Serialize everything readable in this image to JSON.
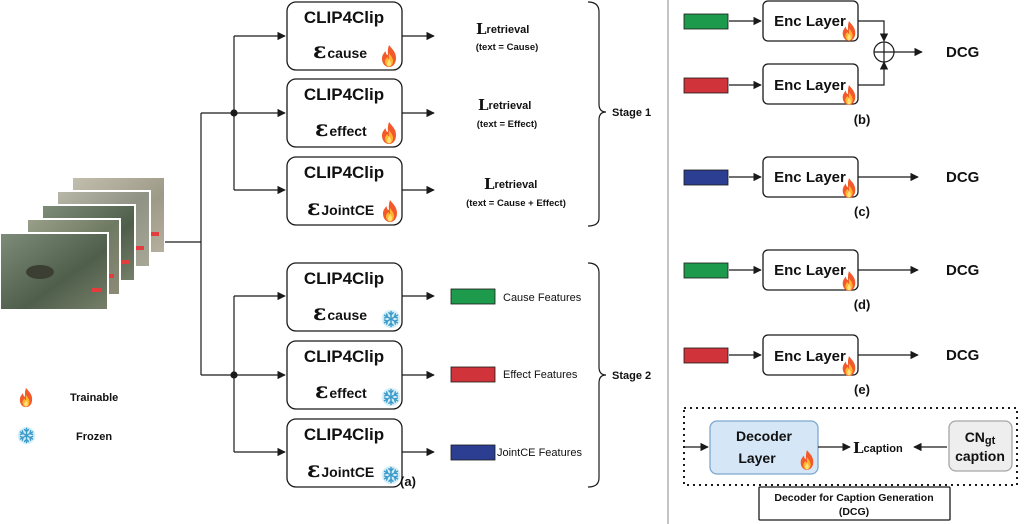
{
  "colors": {
    "cause": "#1e9a4c",
    "effect": "#d0343a",
    "jointce": "#2b3e92",
    "decoder_fill": "#d5e6f6",
    "decoder_stroke": "#7ea7cf",
    "cn_fill": "#eeeeee",
    "cn_stroke": "#a6a6a6"
  },
  "panel_a": {
    "label": "(a)",
    "stage1": {
      "label": "Stage 1",
      "encoders": [
        {
          "model": "CLIP4Clip",
          "symbol": "ε",
          "sub": "cause",
          "state": "trainable",
          "loss_main": "L",
          "loss_sub": "retrieval",
          "loss_note": "(text = Cause)"
        },
        {
          "model": "CLIP4Clip",
          "symbol": "ε",
          "sub": "effect",
          "state": "trainable",
          "loss_main": "L",
          "loss_sub": "retrieval",
          "loss_note": "(text = Effect)"
        },
        {
          "model": "CLIP4Clip",
          "symbol": "ε",
          "sub": "JointCE",
          "state": "trainable",
          "loss_main": "L",
          "loss_sub": "retrieval",
          "loss_note": "(text = Cause + Effect)"
        }
      ]
    },
    "stage2": {
      "label": "Stage 2",
      "encoders": [
        {
          "model": "CLIP4Clip",
          "symbol": "ε",
          "sub": "cause",
          "state": "frozen",
          "feature": "Cause Features",
          "color_key": "cause"
        },
        {
          "model": "CLIP4Clip",
          "symbol": "ε",
          "sub": "effect",
          "state": "frozen",
          "feature": "Effect Features",
          "color_key": "effect"
        },
        {
          "model": "CLIP4Clip",
          "symbol": "ε",
          "sub": "JointCE",
          "state": "frozen",
          "feature": "JointCE Features",
          "color_key": "jointce"
        }
      ]
    },
    "legend": [
      {
        "icon": "fire-icon",
        "label": "Trainable"
      },
      {
        "icon": "snowflake-icon",
        "label": "Frozen"
      }
    ]
  },
  "panels_right": {
    "enc_layer_label": "Enc Layer",
    "dcg_label": "DCG",
    "b": {
      "label": "(b)",
      "inputs": [
        "cause",
        "effect"
      ]
    },
    "c": {
      "label": "(c)",
      "inputs": [
        "jointce"
      ]
    },
    "d": {
      "label": "(d)",
      "inputs": [
        "cause"
      ]
    },
    "e": {
      "label": "(e)",
      "inputs": [
        "effect"
      ]
    }
  },
  "decoder": {
    "layer_line1": "Decoder",
    "layer_line2": "Layer",
    "loss_main": "L",
    "loss_sub": "caption",
    "cn_main": "CN",
    "cn_sub": "gt",
    "cn_line2": "caption",
    "title_line1": "Decoder for Caption Generation",
    "title_line2": "(DCG)"
  }
}
